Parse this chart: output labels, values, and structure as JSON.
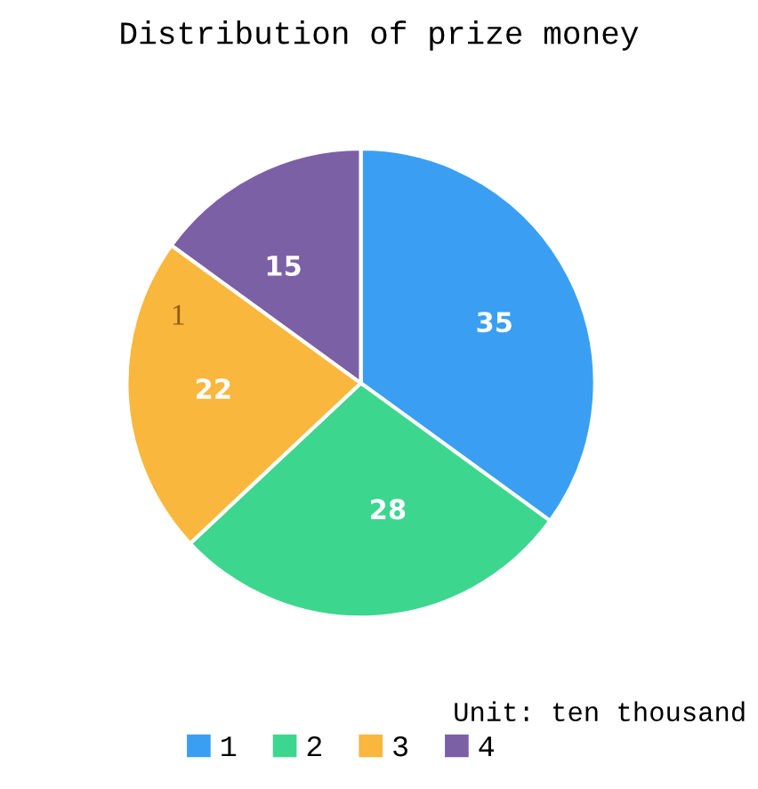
{
  "chart_data": {
    "type": "pie",
    "title": "Distribution of prize money",
    "categories": [
      "1",
      "2",
      "3",
      "4"
    ],
    "values": [
      35,
      28,
      22,
      15
    ],
    "colors": [
      "#3a9ff2",
      "#3dd68f",
      "#f9b73d",
      "#7b60a6"
    ],
    "data_labels": true,
    "legend": "bottom",
    "annotations": [
      "Unit: ten thousand",
      "1"
    ]
  }
}
